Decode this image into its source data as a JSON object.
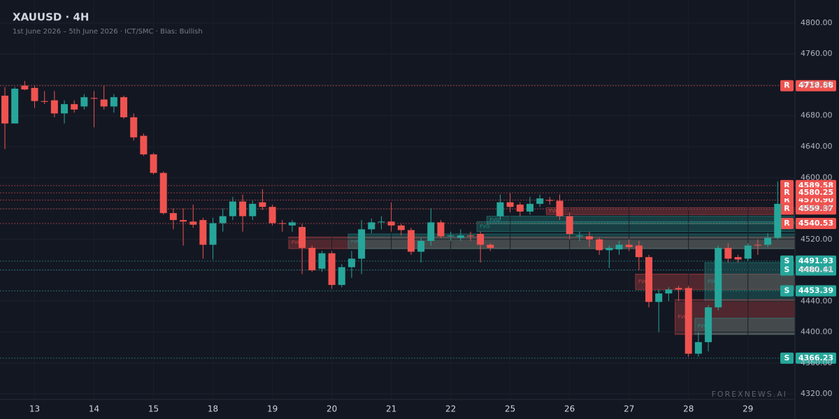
{
  "chart_data": {
    "type": "candlestick",
    "title": "XAUUSD · 4H",
    "subtitle": "1st June 2026 – 5th June 2026 · ICT/SMC · Bias: Bullish",
    "watermark": "FOREXNEWS.AI",
    "categories": [
      null,
      null,
      null,
      "13",
      null,
      null,
      null,
      null,
      null,
      "14",
      null,
      null,
      null,
      null,
      null,
      "15",
      null,
      null,
      null,
      null,
      null,
      "18",
      null,
      null,
      null,
      null,
      null,
      "19",
      null,
      null,
      null,
      null,
      null,
      "20",
      null,
      null,
      null,
      null,
      null,
      "21",
      null,
      null,
      null,
      null,
      null,
      "22",
      null,
      null,
      null,
      null,
      null,
      "25",
      null,
      null,
      null,
      null,
      null,
      "26",
      null,
      null,
      null,
      null,
      null,
      "27",
      null,
      null,
      null,
      null,
      null,
      "28",
      null,
      null,
      null,
      null,
      null,
      "29",
      null,
      null,
      null
    ],
    "open": [
      4706,
      4670,
      4719,
      4716,
      4699,
      4700,
      4683,
      4695,
      4692,
      4703,
      4701,
      4692,
      4704,
      4678,
      4654,
      4630,
      4606,
      4554,
      4545,
      4543,
      4545,
      4513,
      4541,
      4550,
      4569,
      4550,
      4568,
      4562,
      4541,
      4538,
      4536,
      4509,
      4482,
      4502,
      4461,
      4484,
      4495,
      4533,
      4542,
      4543,
      4538,
      4532,
      4504,
      4518,
      4542,
      4524,
      4522,
      4525,
      4527,
      4513,
      4550,
      4568,
      4565,
      4556,
      4566,
      4571,
      4570,
      4550,
      4524,
      4524,
      4520,
      4506,
      4507,
      4513,
      4512,
      4497,
      4439,
      4450,
      4457,
      4457,
      4372,
      4387,
      4432,
      4509,
      4497,
      4495,
      4513,
      4513,
      4522
    ],
    "high": [
      4717,
      4717,
      4725,
      4719,
      4712,
      4712,
      4700,
      4700,
      4708,
      4712,
      4719,
      4708,
      4706,
      4683,
      4657,
      4632,
      4608,
      4560,
      4560,
      4565,
      4548,
      4548,
      4560,
      4575,
      4578,
      4570,
      4585,
      4565,
      4545,
      4545,
      4540,
      4512,
      4505,
      4505,
      4488,
      4505,
      4545,
      4547,
      4550,
      4568,
      4540,
      4535,
      4522,
      4560,
      4545,
      4530,
      4533,
      4530,
      4530,
      4515,
      4578,
      4580,
      4568,
      4575,
      4578,
      4575,
      4578,
      4555,
      4530,
      4530,
      4522,
      4512,
      4518,
      4520,
      4518,
      4500,
      4455,
      4458,
      4460,
      4460,
      4400,
      4435,
      4512,
      4515,
      4500,
      4515,
      4520,
      4528,
      4595
    ],
    "low": [
      4637,
      4670,
      4713,
      4690,
      4695,
      4678,
      4670,
      4684,
      4688,
      4665,
      4688,
      4684,
      4676,
      4648,
      4628,
      4604,
      4552,
      4533,
      4512,
      4535,
      4495,
      4494,
      4530,
      4545,
      4530,
      4545,
      4558,
      4538,
      4530,
      4530,
      4475,
      4478,
      4478,
      4456,
      4458,
      4470,
      4475,
      4528,
      4533,
      4530,
      4525,
      4500,
      4490,
      4512,
      4522,
      4518,
      4518,
      4518,
      4490,
      4505,
      4545,
      4555,
      4550,
      4552,
      4562,
      4565,
      4545,
      4520,
      4518,
      4510,
      4500,
      4483,
      4500,
      4505,
      4480,
      4432,
      4400,
      4440,
      4440,
      4368,
      4368,
      4375,
      4428,
      4490,
      4490,
      4492,
      4500,
      4510,
      4520
    ],
    "close": [
      4670,
      4715,
      4714,
      4699,
      4698,
      4683,
      4695,
      4688,
      4704,
      4702,
      4692,
      4704,
      4678,
      4652,
      4630,
      4606,
      4554,
      4545,
      4543,
      4539,
      4513,
      4541,
      4550,
      4569,
      4550,
      4566,
      4562,
      4541,
      4540,
      4542,
      4509,
      4480,
      4502,
      4461,
      4484,
      4495,
      4533,
      4542,
      4543,
      4538,
      4532,
      4504,
      4518,
      4542,
      4524,
      4525,
      4525,
      4524,
      4513,
      4509,
      4568,
      4562,
      4556,
      4566,
      4573,
      4570,
      4550,
      4527,
      4525,
      4520,
      4506,
      4509,
      4513,
      4510,
      4497,
      4439,
      4450,
      4455,
      4455,
      4372,
      4387,
      4432,
      4509,
      4495,
      4494,
      4512,
      4512,
      4522,
      4566
    ],
    "up_color": "#26a69a",
    "down_color": "#ef5350",
    "ylim": [
      4287.5,
      4829.8
    ],
    "yticks": [
      {
        "value": 4320,
        "label": "4320.00"
      },
      {
        "value": 4360,
        "label": "4360.00"
      },
      {
        "value": 4400,
        "label": "4400.00"
      },
      {
        "value": 4440,
        "label": "4440.00"
      },
      {
        "value": 4480,
        "label": "4480.00"
      },
      {
        "value": 4520,
        "label": "4520.00"
      },
      {
        "value": 4560,
        "label": "4560.00"
      },
      {
        "value": 4600,
        "label": "4600.00"
      },
      {
        "value": 4640,
        "label": "4640.00"
      },
      {
        "value": 4680,
        "label": "4680.00"
      },
      {
        "value": 4720,
        "label": "4720.00"
      },
      {
        "value": 4760,
        "label": "4760.00"
      },
      {
        "value": 4800,
        "label": "4800.00"
      }
    ],
    "levels": [
      {
        "type": "R",
        "value": 4718.88,
        "label": "4718.88",
        "color": "#ef5350"
      },
      {
        "type": "R",
        "value": 4589.58,
        "label": "4589.58",
        "color": "#ef5350"
      },
      {
        "type": "R",
        "value": 4570.9,
        "label": "4570.90",
        "color": "#ef5350"
      },
      {
        "type": "R",
        "value": 4580.25,
        "label": "4580.25",
        "color": "#ef5350"
      },
      {
        "type": "R",
        "value": 4559.37,
        "label": "4559.37",
        "color": "#ef5350"
      },
      {
        "type": "R",
        "value": 4540.53,
        "label": "4540.53",
        "color": "#ef5350"
      },
      {
        "type": "S",
        "value": 4491.93,
        "label": "4491.93",
        "color": "#26a69a"
      },
      {
        "type": "S",
        "value": 4480.41,
        "label": "4480.41",
        "color": "#26a69a"
      },
      {
        "type": "S",
        "value": 4453.39,
        "label": "4453.39",
        "color": "#26a69a"
      },
      {
        "type": "S",
        "value": 4366.23,
        "label": "4366.23",
        "color": "#26a69a"
      }
    ],
    "zones": [
      {
        "start": 29,
        "top": 4523,
        "bottom": 4508,
        "color": "#ef5350",
        "label": "FVG"
      },
      {
        "start": 35,
        "top": 4527,
        "bottom": 4508,
        "color": "#26a69a",
        "label": "FVG"
      },
      {
        "start": 48,
        "top": 4543,
        "bottom": 4530,
        "color": "#26a69a",
        "label": "FVG"
      },
      {
        "start": 49,
        "top": 4550,
        "bottom": 4540,
        "color": "#26a69a",
        "label": "FVG"
      },
      {
        "start": 55,
        "top": 4561,
        "bottom": 4552,
        "color": "#ef5350",
        "label": "FVG"
      },
      {
        "start": 64,
        "top": 4475,
        "bottom": 4455,
        "color": "#ef5350",
        "label": "FVG"
      },
      {
        "start": 71,
        "top": 4490,
        "bottom": 4440,
        "color": "#26a69a",
        "label": "FVG"
      },
      {
        "start": 68,
        "top": 4442,
        "bottom": 4397,
        "color": "#ef5350",
        "label": "FVG"
      },
      {
        "start": 70,
        "top": 4418,
        "bottom": 4397,
        "color": "#26a69a",
        "label": "FVG"
      }
    ]
  }
}
